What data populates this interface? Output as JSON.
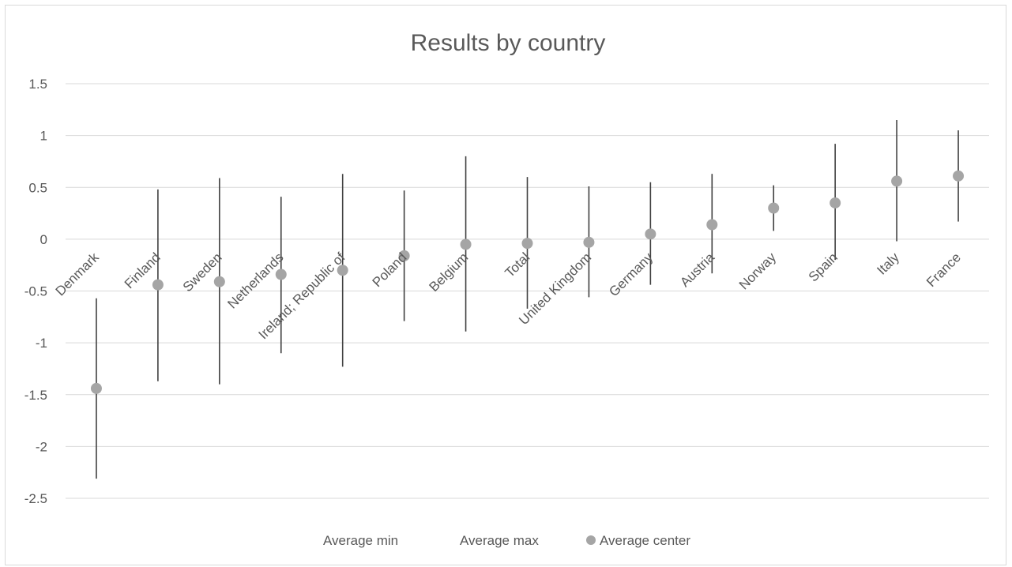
{
  "chart_data": {
    "type": "scatter",
    "title": "Results by country",
    "xlabel": "",
    "ylabel": "",
    "ylim": [
      -2.5,
      1.5
    ],
    "y_ticks": [
      "1.5",
      "1",
      "0.5",
      "0",
      "-0.5",
      "-1",
      "-1.5",
      "-2",
      "-2.5"
    ],
    "y_tick_values": [
      1.5,
      1,
      0.5,
      0,
      -0.5,
      -1,
      -1.5,
      -2,
      -2.5
    ],
    "grid": true,
    "legend_position": "bottom",
    "categories": [
      "Denmark",
      "Finland",
      "Sweden",
      "Netherlands",
      "Ireland; Republic of",
      "Poland",
      "Belgium",
      "Total",
      "United Kingdom",
      "Germany",
      "Austria",
      "Norway",
      "Spain",
      "Italy",
      "France"
    ],
    "series": [
      {
        "name": "Average min",
        "values": [
          -2.31,
          -1.37,
          -1.4,
          -1.1,
          -1.23,
          -0.79,
          -0.89,
          -0.67,
          -0.56,
          -0.44,
          -0.33,
          0.08,
          -0.2,
          -0.02,
          0.17
        ]
      },
      {
        "name": "Average max",
        "values": [
          -0.57,
          0.48,
          0.59,
          0.41,
          0.63,
          0.47,
          0.8,
          0.6,
          0.51,
          0.55,
          0.63,
          0.52,
          0.92,
          1.15,
          1.05
        ]
      },
      {
        "name": "Average center",
        "values": [
          -1.44,
          -0.44,
          -0.41,
          -0.34,
          -0.3,
          -0.16,
          -0.05,
          -0.04,
          -0.03,
          0.05,
          0.14,
          0.3,
          0.35,
          0.56,
          0.61
        ]
      }
    ],
    "colors": {
      "error_bar": "#404040",
      "marker": "#a5a5a5",
      "grid": "#d9d9d9",
      "text": "#595959"
    }
  }
}
